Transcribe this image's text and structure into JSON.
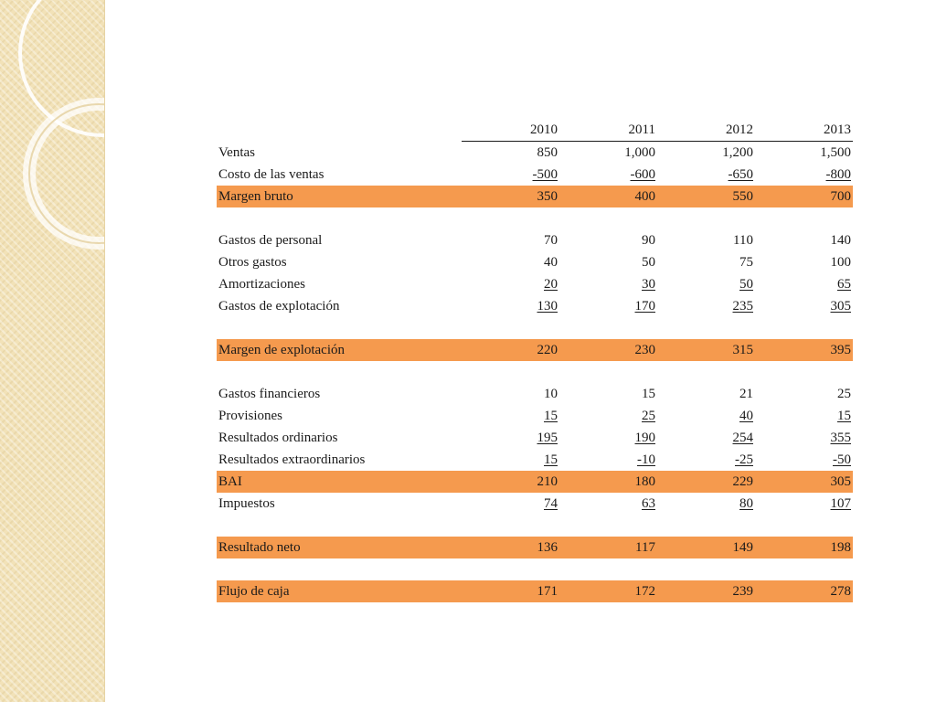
{
  "table": {
    "headers": [
      "2010",
      "2011",
      "2012",
      "2013"
    ],
    "rows": [
      {
        "label": "Ventas",
        "values": [
          "850",
          "1,000",
          "1,200",
          "1,500"
        ]
      },
      {
        "label": "Costo de las ventas",
        "values": [
          "-500",
          "-600",
          "-650",
          "-800"
        ]
      },
      {
        "label": "Margen bruto",
        "values": [
          "350",
          "400",
          "550",
          "700"
        ]
      },
      {
        "label": "Gastos de personal",
        "values": [
          "70",
          "90",
          "110",
          "140"
        ]
      },
      {
        "label": "Otros gastos",
        "values": [
          "40",
          "50",
          "75",
          "100"
        ]
      },
      {
        "label": "Amortizaciones",
        "values": [
          "20",
          "30",
          "50",
          "65"
        ]
      },
      {
        "label": "Gastos de explotación",
        "values": [
          "130",
          "170",
          "235",
          "305"
        ]
      },
      {
        "label": "Margen de explotación",
        "values": [
          "220",
          "230",
          "315",
          "395"
        ]
      },
      {
        "label": "Gastos financieros",
        "values": [
          "10",
          "15",
          "21",
          "25"
        ]
      },
      {
        "label": "Provisiones",
        "values": [
          "15",
          "25",
          "40",
          "15"
        ]
      },
      {
        "label": "Resultados ordinarios",
        "values": [
          "195",
          "190",
          "254",
          "355"
        ]
      },
      {
        "label": "Resultados extraordinarios",
        "values": [
          "15",
          "-10",
          "-25",
          "-50"
        ]
      },
      {
        "label": "BAI",
        "values": [
          "210",
          "180",
          "229",
          "305"
        ]
      },
      {
        "label": "Impuestos",
        "values": [
          "74",
          "63",
          "80",
          "107"
        ]
      },
      {
        "label": "Resultado neto",
        "values": [
          "136",
          "117",
          "149",
          "198"
        ]
      },
      {
        "label": "Flujo de caja",
        "values": [
          "171",
          "172",
          "239",
          "278"
        ]
      }
    ]
  },
  "colors": {
    "highlight": "#f59a4e",
    "side_band": "#f2e2b8"
  }
}
